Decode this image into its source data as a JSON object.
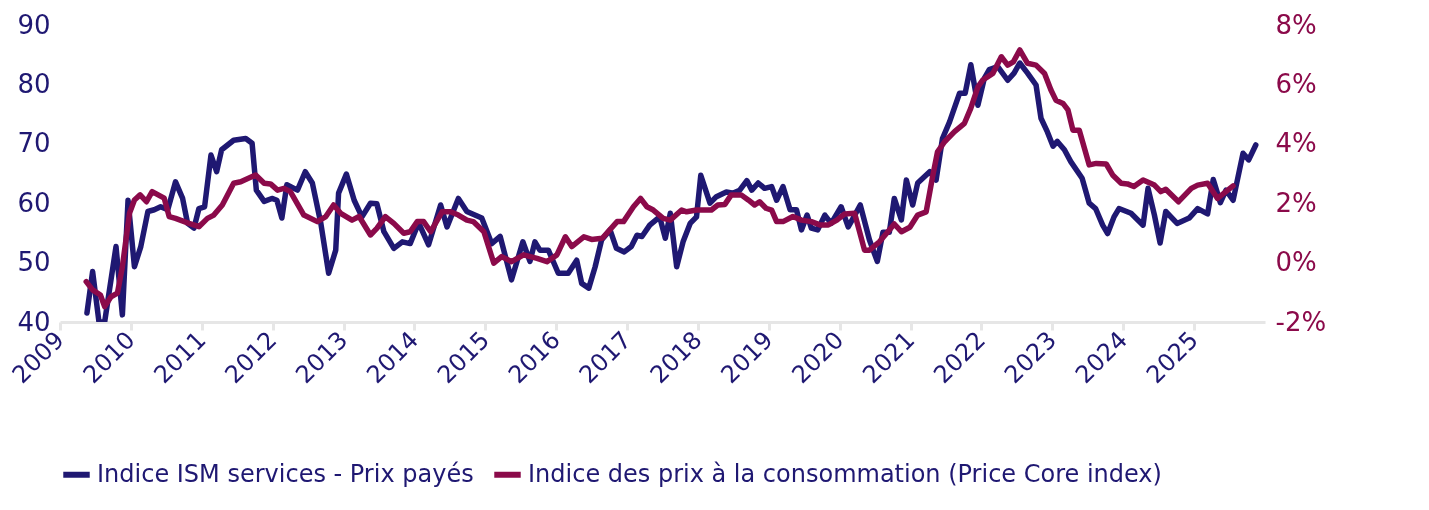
{
  "chart_data": {
    "type": "line",
    "xlim": [
      2009,
      2026
    ],
    "xticks": [
      2009,
      2010,
      2011,
      2012,
      2013,
      2014,
      2015,
      2016,
      2017,
      2018,
      2019,
      2020,
      2021,
      2022,
      2023,
      2024,
      2025
    ],
    "ylim": [
      40,
      90
    ],
    "yticks": [
      40,
      50,
      60,
      70,
      80,
      90
    ],
    "y2lim": [
      -2,
      8
    ],
    "y2ticks": [
      {
        "value": -2,
        "label": "-2%"
      },
      {
        "value": 0,
        "label": "0%"
      },
      {
        "value": 2,
        "label": "2%"
      },
      {
        "value": 4,
        "label": "4%"
      },
      {
        "value": 6,
        "label": "6%"
      },
      {
        "value": 8,
        "label": "8%"
      }
    ],
    "grid": false,
    "legend": "bottom",
    "line_style": "solid",
    "marker": "none",
    "series": [
      {
        "name": "Indice ISM services - Prix payés",
        "color": "#1f1872",
        "axis": "y",
        "x": [
          2009.38,
          2009.46,
          2009.55,
          2009.63,
          2009.79,
          2009.88,
          2009.96,
          2010.05,
          2010.14,
          2010.24,
          2010.33,
          2010.42,
          2010.52,
          2010.63,
          2010.73,
          2010.8,
          2010.89,
          2010.96,
          2011.04,
          2011.13,
          2011.21,
          2011.28,
          2011.45,
          2011.62,
          2011.71,
          2011.77,
          2011.88,
          2011.99,
          2012.06,
          2012.13,
          2012.2,
          2012.35,
          2012.46,
          2012.56,
          2012.68,
          2012.79,
          2012.89,
          2012.93,
          2013.04,
          2013.15,
          2013.26,
          2013.38,
          2013.47,
          2013.57,
          2013.71,
          2013.83,
          2013.94,
          2014.06,
          2014.2,
          2014.37,
          2014.46,
          2014.62,
          2014.74,
          2014.95,
          2015.09,
          2015.21,
          2015.37,
          2015.53,
          2015.63,
          2015.7,
          2015.77,
          2015.89,
          2016.03,
          2016.17,
          2016.29,
          2016.36,
          2016.46,
          2016.55,
          2016.64,
          2016.76,
          2016.85,
          2016.96,
          2017.06,
          2017.14,
          2017.21,
          2017.32,
          2017.46,
          2017.54,
          2017.61,
          2017.7,
          2017.79,
          2017.89,
          2017.98,
          2018.04,
          2018.17,
          2018.26,
          2018.4,
          2018.5,
          2018.59,
          2018.69,
          2018.76,
          2018.85,
          2018.94,
          2019.04,
          2019.11,
          2019.2,
          2019.3,
          2019.39,
          2019.46,
          2019.54,
          2019.6,
          2019.69,
          2019.79,
          2019.88,
          2020.02,
          2020.12,
          2020.19,
          2020.29,
          2020.42,
          2020.53,
          2020.61,
          2020.7,
          2020.77,
          2020.87,
          2020.94,
          2021.03,
          2021.1,
          2021.27,
          2021.36,
          2021.45,
          2021.55,
          2021.69,
          2021.77,
          2021.85,
          2021.95,
          2022.04,
          2022.11,
          2022.23,
          2022.37,
          2022.46,
          2022.54,
          2022.65,
          2022.77,
          2022.84,
          2022.93,
          2023.01,
          2023.07,
          2023.17,
          2023.26,
          2023.42,
          2023.52,
          2023.61,
          2023.71,
          2023.78,
          2023.87,
          2023.94,
          2024.11,
          2024.28,
          2024.35,
          2024.44,
          2024.52,
          2024.6,
          2024.76,
          2024.93,
          2025.05,
          2025.19,
          2025.27,
          2025.37,
          2025.45,
          2025.55,
          2025.69,
          2025.77,
          2025.87
        ],
        "values": [
          41.5,
          48.5,
          40,
          40,
          52.7,
          41.2,
          60.5,
          49.3,
          52.7,
          58.6,
          58.9,
          59.4,
          58.9,
          63.6,
          60.8,
          56.6,
          55.8,
          59.1,
          59.4,
          68.1,
          65.3,
          69,
          70.6,
          70.9,
          70.1,
          62.2,
          60.3,
          60.8,
          60.5,
          57.5,
          63.1,
          62.2,
          65.3,
          63.4,
          56.6,
          48.2,
          52.1,
          61.7,
          64.9,
          60.5,
          57.7,
          60,
          59.9,
          55.2,
          52.4,
          53.5,
          53.2,
          56.7,
          53,
          59.7,
          56,
          60.8,
          58.6,
          57.5,
          53.2,
          54.4,
          47.1,
          53.5,
          50.2,
          53.5,
          52.1,
          52.1,
          48.2,
          48.2,
          50.4,
          46.5,
          45.7,
          49.3,
          53.8,
          55.5,
          52.4,
          51.8,
          52.7,
          54.6,
          54.4,
          56.3,
          57.7,
          54.1,
          58.3,
          49.3,
          53.5,
          56.6,
          57.7,
          64.7,
          60,
          61.1,
          61.9,
          61.7,
          62.2,
          63.8,
          62.2,
          63.4,
          62.5,
          62.8,
          60.5,
          62.8,
          58.9,
          58.9,
          55.5,
          58,
          55.8,
          55.5,
          58,
          56.6,
          59.4,
          56,
          57.5,
          59.7,
          53.8,
          50.2,
          55.1,
          55.1,
          60.8,
          57.2,
          63.9,
          59.7,
          63.4,
          65.3,
          63.9,
          70.9,
          73.7,
          78.5,
          78.5,
          83.3,
          76.5,
          81,
          82.5,
          83,
          80.7,
          81.9,
          83.6,
          81.9,
          79.9,
          74.3,
          72,
          69.6,
          70.4,
          69,
          67,
          64.2,
          60,
          59.1,
          56.3,
          54.9,
          57.7,
          59.1,
          58.3,
          56.3,
          62.5,
          58,
          53.3,
          58.6,
          56.6,
          57.5,
          59.1,
          58.2,
          64,
          60.1,
          62.2,
          60.5,
          68.4,
          67.3,
          69.8
        ]
      },
      {
        "name": "Indice des prix à la consommation (Price Core index)",
        "color": "#8b0a4a",
        "axis": "y2",
        "x": [
          2009.37,
          2009.46,
          2009.57,
          2009.63,
          2009.72,
          2009.81,
          2009.88,
          2009.98,
          2010.05,
          2010.13,
          2010.22,
          2010.3,
          2010.47,
          2010.54,
          2010.63,
          2010.82,
          2010.96,
          2011.08,
          2011.17,
          2011.29,
          2011.45,
          2011.55,
          2011.76,
          2011.88,
          2011.97,
          2012.07,
          2012.16,
          2012.25,
          2012.44,
          2012.63,
          2012.75,
          2012.86,
          2012.96,
          2013.12,
          2013.22,
          2013.38,
          2013.47,
          2013.59,
          2013.71,
          2013.85,
          2013.94,
          2014.04,
          2014.13,
          2014.23,
          2014.39,
          2014.51,
          2014.62,
          2014.74,
          2014.83,
          2014.98,
          2015.12,
          2015.23,
          2015.37,
          2015.54,
          2015.73,
          2015.87,
          2016.01,
          2016.13,
          2016.22,
          2016.39,
          2016.5,
          2016.65,
          2016.86,
          2016.95,
          2017.09,
          2017.19,
          2017.28,
          2017.37,
          2017.51,
          2017.61,
          2017.77,
          2017.84,
          2017.98,
          2018.19,
          2018.28,
          2018.38,
          2018.47,
          2018.61,
          2018.71,
          2018.8,
          2018.87,
          2018.96,
          2019.04,
          2019.11,
          2019.2,
          2019.34,
          2019.46,
          2019.6,
          2019.72,
          2019.84,
          2019.96,
          2020.07,
          2020.21,
          2020.35,
          2020.42,
          2020.56,
          2020.68,
          2020.77,
          2020.87,
          2020.99,
          2021.1,
          2021.22,
          2021.31,
          2021.38,
          2021.48,
          2021.62,
          2021.76,
          2021.85,
          2021.95,
          2022.02,
          2022.16,
          2022.28,
          2022.37,
          2022.45,
          2022.54,
          2022.65,
          2022.77,
          2022.89,
          2022.98,
          2023.05,
          2023.15,
          2023.22,
          2023.29,
          2023.38,
          2023.52,
          2023.62,
          2023.76,
          2023.85,
          2023.97,
          2024.06,
          2024.15,
          2024.28,
          2024.44,
          2024.53,
          2024.6,
          2024.78,
          2024.96,
          2025.05,
          2025.19,
          2025.33,
          2025.55
        ],
        "values": [
          -0.64,
          -0.92,
          -1.09,
          -1.48,
          -1.15,
          -1.03,
          -0.14,
          1.66,
          2.11,
          2.28,
          2.05,
          2.39,
          2.17,
          1.55,
          1.49,
          1.32,
          1.21,
          1.49,
          1.6,
          1.94,
          2.67,
          2.72,
          2.95,
          2.67,
          2.65,
          2.44,
          2.5,
          2.39,
          1.6,
          1.38,
          1.55,
          1.94,
          1.66,
          1.43,
          1.55,
          0.93,
          1.15,
          1.55,
          1.32,
          0.99,
          1.04,
          1.38,
          1.38,
          1.04,
          1.71,
          1.71,
          1.6,
          1.43,
          1.38,
          1.04,
          -0.02,
          0.2,
          0.03,
          0.26,
          0.14,
          0.03,
          0.26,
          0.87,
          0.54,
          0.87,
          0.78,
          0.82,
          1.38,
          1.38,
          1.88,
          2.16,
          1.88,
          1.77,
          1.49,
          1.43,
          1.77,
          1.71,
          1.77,
          1.77,
          1.94,
          1.96,
          2.28,
          2.28,
          2.11,
          1.94,
          2.05,
          1.83,
          1.77,
          1.38,
          1.38,
          1.55,
          1.43,
          1.38,
          1.27,
          1.27,
          1.43,
          1.64,
          1.66,
          0.42,
          0.42,
          0.7,
          1.04,
          1.3,
          1.04,
          1.19,
          1.6,
          1.71,
          2.89,
          3.73,
          4.07,
          4.41,
          4.69,
          5.2,
          5.92,
          6.15,
          6.37,
          6.93,
          6.65,
          6.76,
          7.16,
          6.71,
          6.65,
          6.37,
          5.81,
          5.47,
          5.36,
          5.14,
          4.46,
          4.46,
          3.29,
          3.34,
          3.32,
          2.95,
          2.67,
          2.65,
          2.56,
          2.78,
          2.61,
          2.39,
          2.47,
          2.05,
          2.5,
          2.61,
          2.67,
          2.16,
          2.58
        ]
      }
    ]
  }
}
